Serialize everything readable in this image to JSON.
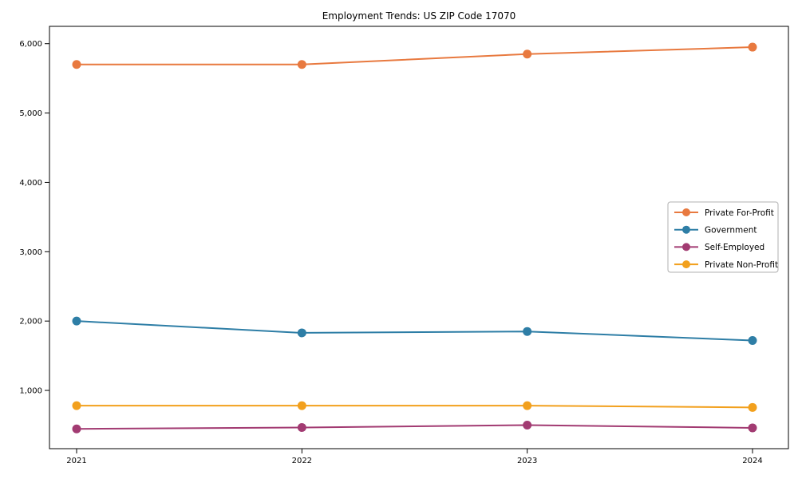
{
  "title": "Employment Trends: US ZIP Code 17070",
  "chart_data": {
    "type": "line",
    "title": "Employment Trends: US ZIP Code 17070",
    "xlabel": "",
    "ylabel": "",
    "x": [
      "2021",
      "2022",
      "2023",
      "2024"
    ],
    "series": [
      {
        "name": "Private For-Profit",
        "color": "#E8793F",
        "values": [
          5700,
          5700,
          5850,
          5950
        ]
      },
      {
        "name": "Government",
        "color": "#2E7EA6",
        "values": [
          2000,
          1830,
          1850,
          1720
        ]
      },
      {
        "name": "Self-Employed",
        "color": "#A23B72",
        "values": [
          445,
          465,
          500,
          460
        ]
      },
      {
        "name": "Private Non-Profit",
        "color": "#F2A01D",
        "values": [
          780,
          780,
          780,
          755
        ]
      }
    ],
    "yticks": [
      1000,
      2000,
      3000,
      4000,
      5000,
      6000
    ],
    "ytick_labels": [
      "1,000",
      "2,000",
      "3,000",
      "4,000",
      "5,000",
      "6,000"
    ],
    "ylim": [
      160,
      6250
    ],
    "grid": false,
    "legend_position": "center right",
    "marker": "o",
    "background": "#ffffff",
    "spine_color": "#000000",
    "legend_border_color": "#b0b0b0"
  }
}
